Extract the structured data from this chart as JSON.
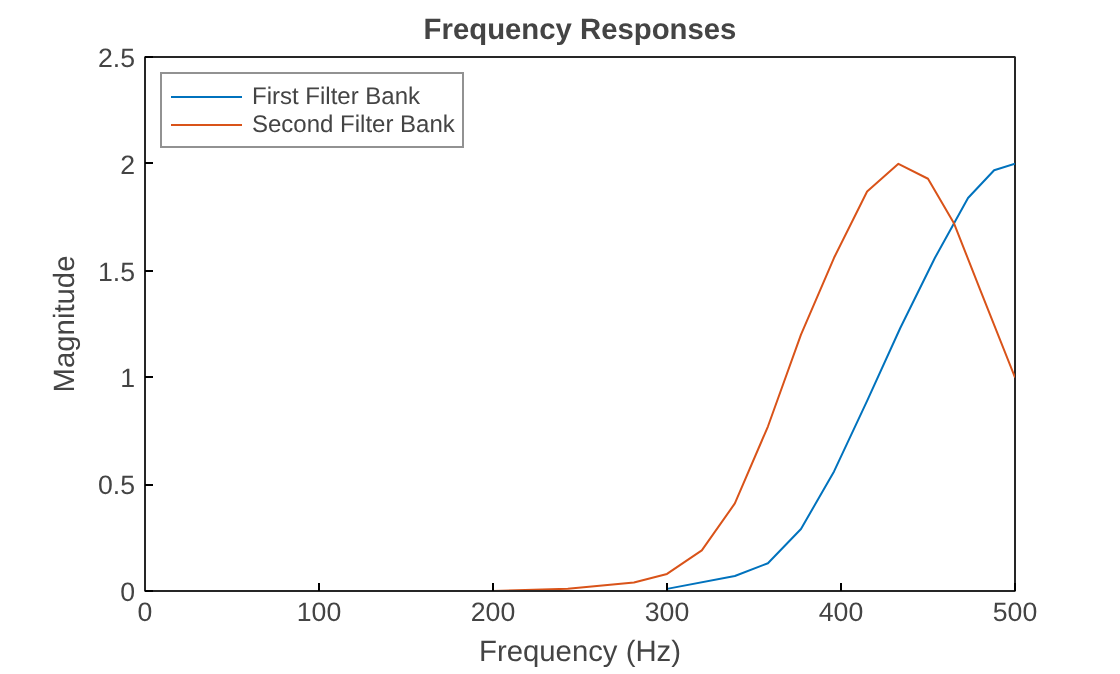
{
  "chart_data": {
    "type": "line",
    "title": "Frequency Responses",
    "xlabel": "Frequency (Hz)",
    "ylabel": "Magnitude",
    "xlim": [
      0,
      500
    ],
    "ylim": [
      0,
      2.5
    ],
    "xticks": [
      0,
      100,
      200,
      300,
      400,
      500
    ],
    "yticks": [
      0,
      0.5,
      1,
      1.5,
      2,
      2.5
    ],
    "grid": false,
    "legend": "top left",
    "marker": "none",
    "line_style": "solid",
    "series": [
      {
        "name": "First Filter Bank",
        "color": "#0072bd",
        "x": [
          300,
          339,
          358,
          377,
          396,
          415,
          434,
          454,
          473,
          488,
          500
        ],
        "values": [
          0.01,
          0.07,
          0.13,
          0.29,
          0.56,
          0.89,
          1.23,
          1.56,
          1.84,
          1.97,
          2.0
        ]
      },
      {
        "name": "Second Filter Bank",
        "color": "#d95319",
        "x": [
          0,
          100,
          200,
          243,
          281,
          300,
          320,
          339,
          358,
          377,
          396,
          415,
          433,
          450,
          465,
          480,
          500
        ],
        "values": [
          0,
          0,
          0,
          0.01,
          0.04,
          0.08,
          0.19,
          0.41,
          0.77,
          1.2,
          1.56,
          1.87,
          2.0,
          1.93,
          1.72,
          1.41,
          1.0
        ]
      }
    ]
  }
}
